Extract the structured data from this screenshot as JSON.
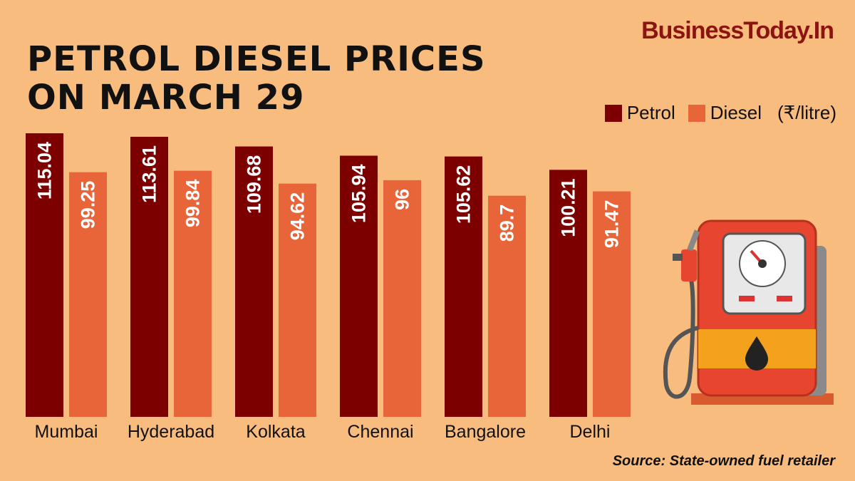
{
  "brand": "BusinessToday.In",
  "title_line1": "PETROL DIESEL PRICES",
  "title_line2": "ON MARCH 29",
  "legend": {
    "petrol": "Petrol",
    "diesel": "Diesel",
    "unit": "(₹/litre)"
  },
  "source": "Source: State-owned fuel retailer",
  "colors": {
    "petrol": "#7D0000",
    "diesel": "#E8653A",
    "background": "#F9BC7F"
  },
  "icons": {
    "illustration": "fuel-pump-icon"
  },
  "chart_data": {
    "type": "bar",
    "categories": [
      "Mumbai",
      "Hyderabad",
      "Kolkata",
      "Chennai",
      "Bangalore",
      "Delhi"
    ],
    "series": [
      {
        "name": "Petrol",
        "values": [
          115.04,
          113.61,
          109.68,
          105.94,
          105.62,
          100.21
        ]
      },
      {
        "name": "Diesel",
        "values": [
          99.25,
          99.84,
          94.62,
          96,
          89.7,
          91.47
        ]
      }
    ],
    "ylabel": "(₹/litre)",
    "legend_position": "top-right",
    "grid": false
  }
}
